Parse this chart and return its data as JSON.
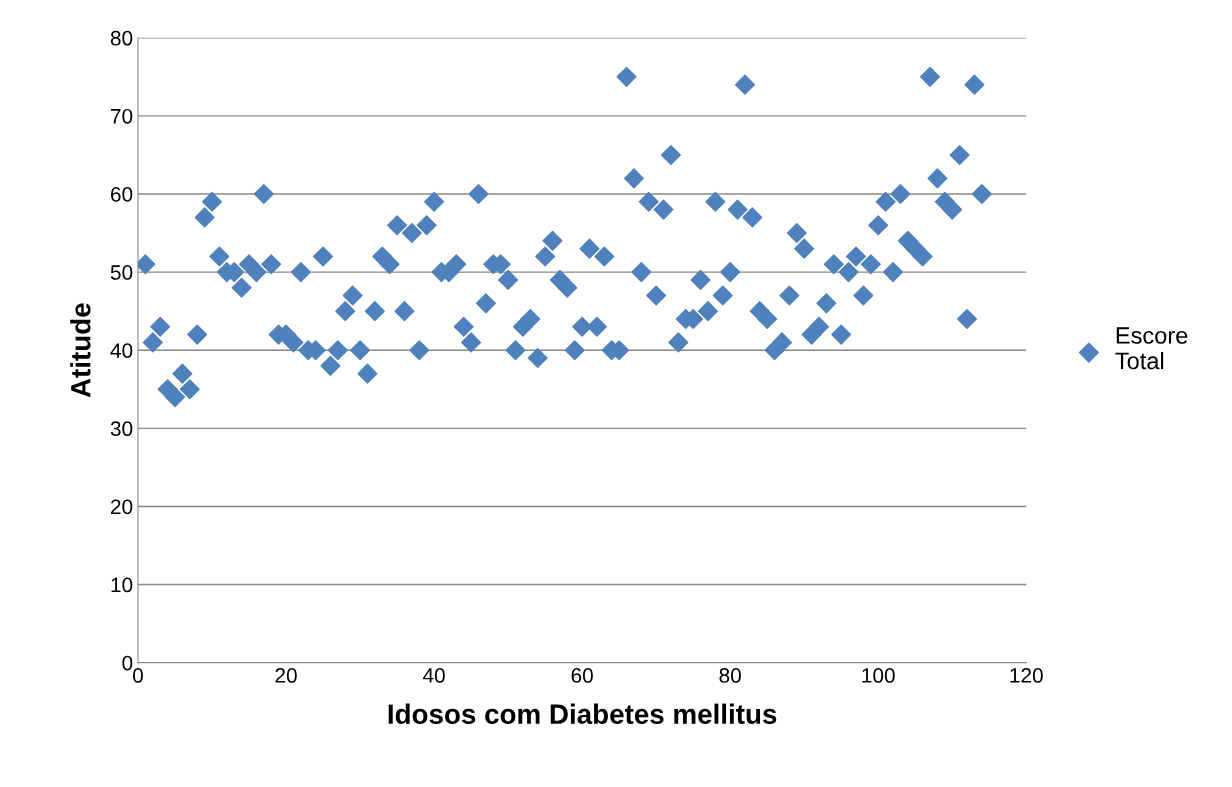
{
  "chart_data": {
    "type": "scatter",
    "xlabel": "Idosos com Diabetes mellitus",
    "ylabel": "Atitude",
    "x": [
      1,
      2,
      3,
      4,
      5,
      6,
      7,
      8,
      9,
      10,
      11,
      12,
      13,
      14,
      15,
      16,
      17,
      18,
      19,
      20,
      21,
      22,
      23,
      24,
      25,
      26,
      27,
      28,
      29,
      30,
      31,
      32,
      33,
      34,
      35,
      36,
      37,
      38,
      39,
      40,
      41,
      42,
      43,
      44,
      45,
      46,
      47,
      48,
      49,
      50,
      51,
      52,
      53,
      54,
      55,
      56,
      57,
      58,
      59,
      60,
      61,
      62,
      63,
      64,
      65,
      66,
      67,
      68,
      69,
      70,
      71,
      72,
      73,
      74,
      75,
      76,
      77,
      78,
      79,
      80,
      81,
      82,
      83,
      84,
      85,
      86,
      87,
      88,
      89,
      90,
      91,
      92,
      93,
      94,
      95,
      96,
      97,
      98,
      99,
      100,
      101,
      102,
      103,
      104,
      105,
      106,
      107,
      108,
      109,
      110,
      111,
      112,
      113,
      114
    ],
    "series": [
      {
        "name": "Escore Total",
        "color": "#4f81bd",
        "values": [
          51,
          41,
          43,
          35,
          34,
          37,
          35,
          42,
          57,
          59,
          52,
          50,
          50,
          48,
          51,
          50,
          60,
          51,
          42,
          42,
          41,
          50,
          40,
          40,
          52,
          38,
          40,
          45,
          47,
          40,
          37,
          45,
          52,
          51,
          56,
          45,
          55,
          40,
          56,
          59,
          50,
          50,
          51,
          43,
          41,
          60,
          46,
          51,
          51,
          49,
          40,
          43,
          44,
          39,
          52,
          54,
          49,
          48,
          40,
          43,
          53,
          43,
          52,
          40,
          40,
          75,
          62,
          50,
          59,
          47,
          58,
          65,
          41,
          44,
          44,
          49,
          45,
          59,
          47,
          50,
          58,
          74,
          57,
          45,
          44,
          40,
          41,
          47,
          55,
          53,
          42,
          43,
          46,
          51,
          42,
          50,
          52,
          47,
          51,
          56,
          59,
          50,
          60,
          54,
          53,
          52,
          75,
          62,
          59,
          58,
          65,
          44,
          74,
          60
        ]
      }
    ],
    "xlim": [
      0,
      120
    ],
    "xticks": [
      0,
      20,
      40,
      60,
      80,
      100,
      120
    ],
    "ylim": [
      0,
      80
    ],
    "yticks": [
      0,
      10,
      20,
      30,
      40,
      50,
      60,
      70,
      80
    ],
    "grid": "y",
    "legend": "right",
    "marker": "diamond"
  }
}
